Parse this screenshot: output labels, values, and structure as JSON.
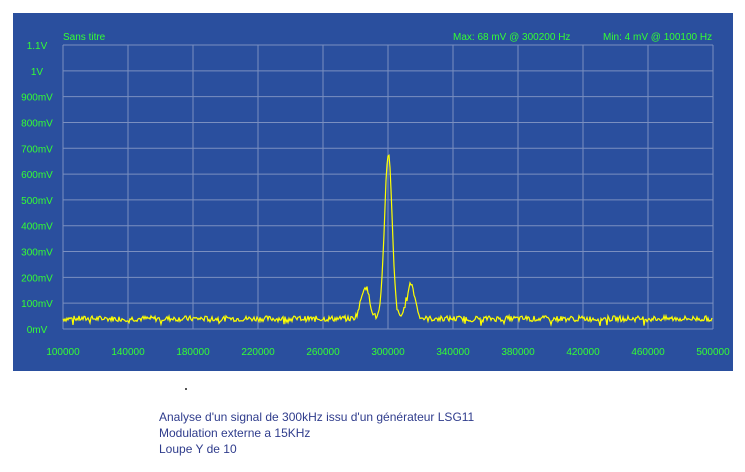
{
  "chart_data": {
    "type": "line",
    "title": "Sans titre",
    "readout_max": "Max: 68 mV  @  300200 Hz",
    "readout_min": "Min: 4 mV  @  100100 Hz",
    "x_ticks": [
      "100000",
      "140000",
      "180000",
      "220000",
      "260000",
      "300000",
      "340000",
      "380000",
      "420000",
      "460000",
      "500000"
    ],
    "y_ticks": [
      "0mV",
      "100mV",
      "200mV",
      "300mV",
      "400mV",
      "500mV",
      "600mV",
      "700mV",
      "800mV",
      "900mV",
      "1V",
      "1.1V"
    ],
    "xlim": [
      100000,
      500000
    ],
    "ylim": [
      0,
      1100
    ],
    "grid": true,
    "line_color": "#ffff00",
    "background_color": "#2a4f9e",
    "grid_color": "#7a8fc0",
    "text_color": "#33ff33",
    "noise_floor_mv": 40,
    "peaks": [
      {
        "x": 286000,
        "y": 165
      },
      {
        "x": 300200,
        "y": 680
      },
      {
        "x": 314000,
        "y": 175
      }
    ]
  },
  "caption": {
    "line1": "Analyse d'un signal de 300kHz issu d'un générateur LSG11",
    "line2": "Modulation externe a 15KHz",
    "line3": "Loupe Y de 10"
  }
}
